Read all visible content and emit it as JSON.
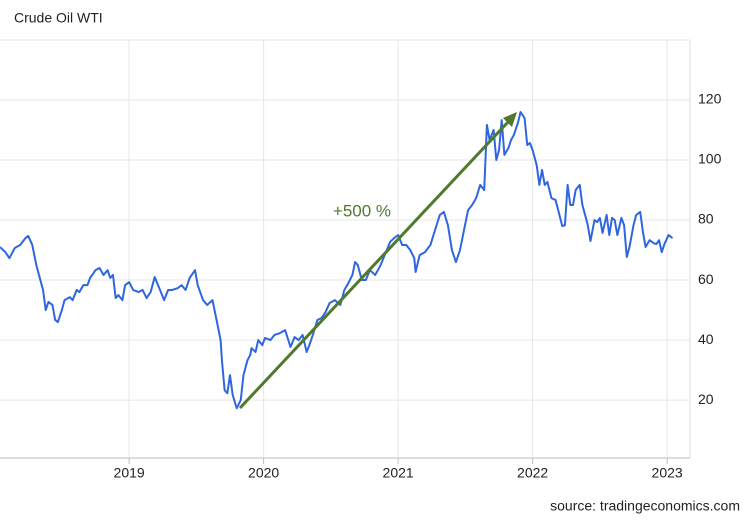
{
  "chart_data": {
    "type": "line",
    "title": "Crude Oil WTI",
    "source": "source: tradingeconomics.com",
    "annotation": "+500 %",
    "color": "#2f66e0",
    "grid": true,
    "xlim": [
      2018.04,
      2023.17
    ],
    "xticks": [
      2019,
      2020,
      2021,
      2022,
      2023
    ],
    "ylim": [
      0.7,
      140
    ],
    "yticks": [
      20,
      40,
      60,
      80,
      100,
      120
    ],
    "x": [
      2018.04,
      2018.08,
      2018.11,
      2018.15,
      2018.19,
      2018.23,
      2018.25,
      2018.28,
      2018.31,
      2018.34,
      2018.36,
      2018.38,
      2018.4,
      2018.43,
      2018.45,
      2018.47,
      2018.5,
      2018.52,
      2018.56,
      2018.58,
      2018.61,
      2018.63,
      2018.66,
      2018.69,
      2018.71,
      2018.75,
      2018.78,
      2018.81,
      2018.84,
      2018.86,
      2018.88,
      2018.9,
      2018.92,
      2018.95,
      2018.97,
      2019.0,
      2019.03,
      2019.07,
      2019.1,
      2019.13,
      2019.16,
      2019.19,
      2019.23,
      2019.26,
      2019.29,
      2019.32,
      2019.36,
      2019.39,
      2019.42,
      2019.45,
      2019.49,
      2019.51,
      2019.55,
      2019.58,
      2019.62,
      2019.65,
      2019.68,
      2019.69,
      2019.71,
      2019.73,
      2019.75,
      2019.77,
      2019.8,
      2019.83,
      2019.85,
      2019.88,
      2019.9,
      2019.91,
      2019.94,
      2019.96,
      2019.99,
      2020.01,
      2020.05,
      2020.08,
      2020.12,
      2020.16,
      2020.2,
      2020.23,
      2020.26,
      2020.29,
      2020.32,
      2020.34,
      2020.37,
      2020.4,
      2020.43,
      2020.46,
      2020.49,
      2020.53,
      2020.57,
      2020.6,
      2020.63,
      2020.66,
      2020.68,
      2020.7,
      2020.73,
      2020.76,
      2020.79,
      2020.83,
      2020.87,
      2020.9,
      2020.94,
      2020.97,
      2021.0,
      2021.03,
      2021.06,
      2021.09,
      2021.12,
      2021.13,
      2021.16,
      2021.2,
      2021.24,
      2021.27,
      2021.31,
      2021.34,
      2021.37,
      2021.4,
      2021.43,
      2021.46,
      2021.49,
      2021.52,
      2021.55,
      2021.58,
      2021.61,
      2021.64,
      2021.66,
      2021.68,
      2021.71,
      2021.73,
      2021.75,
      2021.77,
      2021.79,
      2021.82,
      2021.84,
      2021.86,
      2021.89,
      2021.91,
      2021.94,
      2021.96,
      2021.98,
      2022.0,
      2022.03,
      2022.05,
      2022.07,
      2022.09,
      2022.11,
      2022.14,
      2022.17,
      2022.19,
      2022.22,
      2022.24,
      2022.26,
      2022.28,
      2022.3,
      2022.32,
      2022.35,
      2022.37,
      2022.39,
      2022.41,
      2022.43,
      2022.46,
      2022.48,
      2022.5,
      2022.52,
      2022.55,
      2022.57,
      2022.59,
      2022.61,
      2022.63,
      2022.66,
      2022.68,
      2022.7,
      2022.72,
      2022.75,
      2022.77,
      2022.8,
      2022.82,
      2022.84,
      2022.87,
      2022.9,
      2022.92,
      2022.94,
      2022.96,
      2022.98,
      2023.01,
      2023.04
    ],
    "values": [
      71,
      69.3,
      67.3,
      70.7,
      71.7,
      74,
      74.7,
      71.7,
      65,
      60,
      56.7,
      50,
      52.7,
      51.7,
      46.7,
      46,
      50,
      53.3,
      54.3,
      53.3,
      56.7,
      56,
      58.3,
      58.3,
      60.7,
      63.3,
      64,
      61.7,
      63.3,
      60.7,
      61.7,
      54,
      55,
      53.3,
      58.3,
      59.3,
      56.7,
      56,
      56.7,
      54,
      56,
      61,
      56.7,
      53.3,
      56.7,
      56.7,
      57.3,
      58.3,
      56.7,
      60.7,
      63.3,
      58.3,
      53.3,
      51.7,
      53.3,
      46.7,
      40,
      33.3,
      23.3,
      22.3,
      28.3,
      21.7,
      17.3,
      20,
      28.3,
      33.3,
      35,
      37.3,
      36,
      40,
      38.3,
      40.7,
      40,
      41.7,
      42.3,
      43.3,
      37.7,
      41,
      40,
      41.7,
      36,
      38.3,
      42.3,
      46.7,
      47.3,
      49.3,
      52.3,
      53.3,
      51.7,
      56.7,
      59,
      61.7,
      66,
      65,
      60,
      60,
      63.3,
      61.7,
      65,
      68.3,
      72.7,
      74,
      75,
      71.7,
      71.7,
      70,
      67.3,
      62.7,
      68.3,
      69.3,
      71.7,
      76,
      81.7,
      82.7,
      78.3,
      70,
      66,
      70,
      76.7,
      83.3,
      85,
      87.3,
      91.7,
      90,
      111.7,
      106.7,
      110,
      100,
      103.3,
      113.3,
      101.7,
      104,
      106.7,
      108.3,
      112.3,
      116,
      114,
      105,
      105.7,
      103.3,
      98.3,
      91.7,
      96.7,
      91.7,
      92.7,
      87.3,
      86.7,
      83.3,
      78,
      78.3,
      91.7,
      85,
      85,
      90,
      91.7,
      85,
      81.7,
      78.3,
      73,
      80,
      79.3,
      80.7,
      75.7,
      81.7,
      75,
      80.7,
      80,
      75,
      80.7,
      78.3,
      67.7,
      71,
      78.3,
      81.7,
      82.7,
      76,
      71,
      73.3,
      72.3,
      72,
      73.3,
      69.3,
      72,
      75,
      74
    ]
  }
}
